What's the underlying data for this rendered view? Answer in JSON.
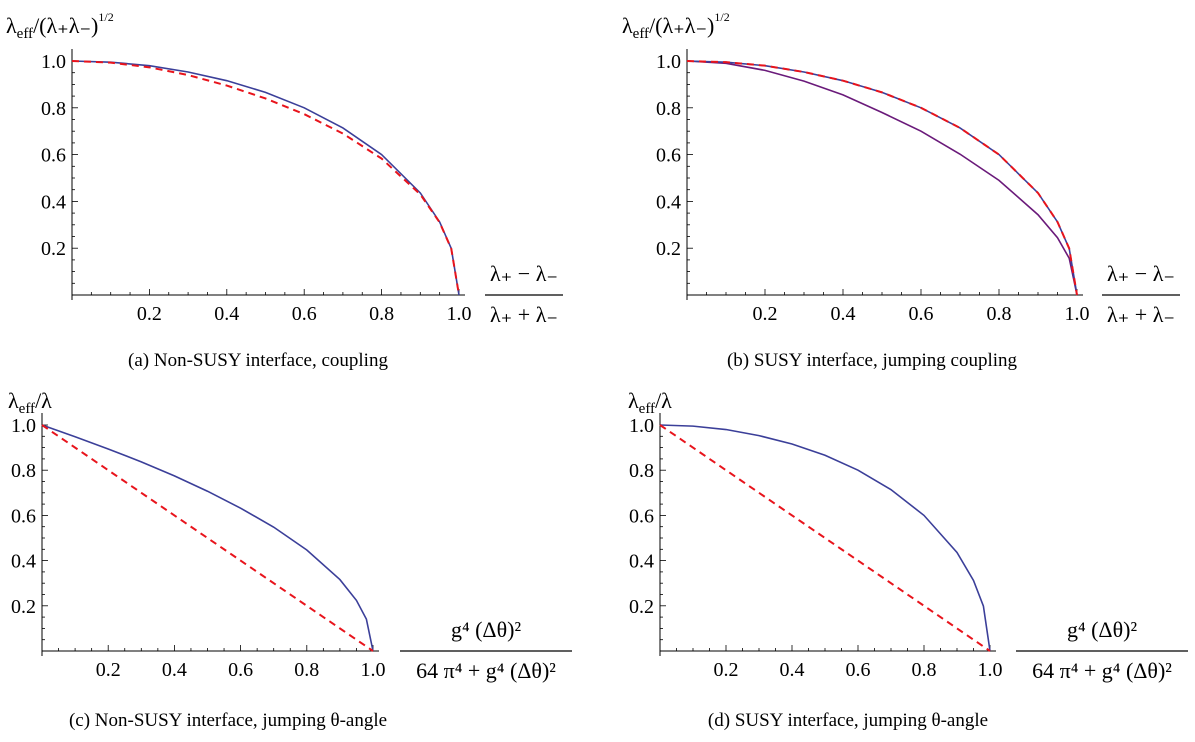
{
  "colors": {
    "blue": "#3b3f99",
    "red": "#e8141c",
    "purple": "#6a1a7a",
    "axis": "#000000"
  },
  "chart_data": [
    {
      "type": "line",
      "caption": "(a) Non-SUSY interface, coupling",
      "ylabel": "λeff/(λ+λ−)^1/2",
      "ylabel_main": "λ",
      "ylabel_sub": "eff",
      "ylabel_rest": "/(λ₊λ₋)",
      "ylabel_sup": "1/2",
      "xlabel_num": "λ₊ − λ₋",
      "xlabel_den": "λ₊ + λ₋",
      "xlim": [
        0,
        1.0
      ],
      "ylim": [
        0,
        1.0
      ],
      "xticks": [
        "0.2",
        "0.4",
        "0.6",
        "0.8",
        "1.0"
      ],
      "yticks": [
        "0.2",
        "0.4",
        "0.6",
        "0.8",
        "1.0"
      ],
      "series": [
        {
          "style": "solid",
          "color": "#3b3f99",
          "x": [
            0,
            0.1,
            0.2,
            0.3,
            0.4,
            0.5,
            0.6,
            0.7,
            0.8,
            0.9,
            0.95,
            0.98,
            1.0
          ],
          "y": [
            1.0,
            0.995,
            0.98,
            0.953,
            0.916,
            0.866,
            0.8,
            0.714,
            0.6,
            0.436,
            0.312,
            0.199,
            0
          ]
        },
        {
          "style": "dashed",
          "color": "#e8141c",
          "x": [
            0,
            0.1,
            0.2,
            0.3,
            0.4,
            0.5,
            0.6,
            0.7,
            0.8,
            0.9,
            0.95,
            0.98,
            1.0
          ],
          "y": [
            1.0,
            0.993,
            0.973,
            0.94,
            0.895,
            0.84,
            0.773,
            0.69,
            0.583,
            0.43,
            0.31,
            0.198,
            0
          ]
        }
      ]
    },
    {
      "type": "line",
      "caption": "(b) SUSY interface, jumping coupling",
      "ylabel": "λeff/(λ+λ−)^1/2",
      "ylabel_main": "λ",
      "ylabel_sub": "eff",
      "ylabel_rest": "/(λ₊λ₋)",
      "ylabel_sup": "1/2",
      "xlabel_num": "λ₊ − λ₋",
      "xlabel_den": "λ₊ + λ₋",
      "xlim": [
        0,
        1.0
      ],
      "ylim": [
        0,
        1.0
      ],
      "xticks": [
        "0.2",
        "0.4",
        "0.6",
        "0.8",
        "1.0"
      ],
      "yticks": [
        "0.2",
        "0.4",
        "0.6",
        "0.8",
        "1.0"
      ],
      "series": [
        {
          "style": "solid",
          "color": "#6a1a7a",
          "x": [
            0,
            0.1,
            0.2,
            0.3,
            0.4,
            0.5,
            0.6,
            0.7,
            0.8,
            0.9,
            0.95,
            0.98,
            1.0
          ],
          "y": [
            1.0,
            0.99,
            0.96,
            0.914,
            0.855,
            0.78,
            0.7,
            0.602,
            0.49,
            0.343,
            0.245,
            0.157,
            0
          ]
        },
        {
          "style": "solid",
          "color": "#3b3f99",
          "x": [
            0,
            0.1,
            0.2,
            0.3,
            0.4,
            0.5,
            0.6,
            0.7,
            0.8,
            0.9,
            0.95,
            0.98,
            1.0
          ],
          "y": [
            1.0,
            0.995,
            0.98,
            0.953,
            0.916,
            0.866,
            0.8,
            0.714,
            0.6,
            0.436,
            0.312,
            0.199,
            0
          ]
        },
        {
          "style": "dashed",
          "color": "#e8141c",
          "x": [
            0,
            0.1,
            0.2,
            0.3,
            0.4,
            0.5,
            0.6,
            0.7,
            0.8,
            0.9,
            0.95,
            0.98,
            1.0
          ],
          "y": [
            1.0,
            0.995,
            0.98,
            0.953,
            0.916,
            0.866,
            0.8,
            0.714,
            0.6,
            0.436,
            0.312,
            0.199,
            0
          ]
        }
      ]
    },
    {
      "type": "line",
      "caption": "(c) Non-SUSY interface, jumping θ-angle",
      "ylabel": "λeff/λ",
      "ylabel_main": "λ",
      "ylabel_sub": "eff",
      "ylabel_rest": "/λ",
      "ylabel_sup": "",
      "xlabel_num": "g⁴ (Δθ)²",
      "xlabel_den": "64 π⁴ + g⁴ (Δθ)²",
      "xlim": [
        0,
        1.0
      ],
      "ylim": [
        0,
        1.0
      ],
      "xticks": [
        "0.2",
        "0.4",
        "0.6",
        "0.8",
        "1.0"
      ],
      "yticks": [
        "0.2",
        "0.4",
        "0.6",
        "0.8",
        "1.0"
      ],
      "series": [
        {
          "style": "solid",
          "color": "#3b3f99",
          "x": [
            0,
            0.1,
            0.2,
            0.3,
            0.4,
            0.5,
            0.6,
            0.7,
            0.8,
            0.9,
            0.95,
            0.98,
            1.0
          ],
          "y": [
            1.0,
            0.948,
            0.894,
            0.837,
            0.775,
            0.707,
            0.632,
            0.548,
            0.447,
            0.316,
            0.224,
            0.141,
            0
          ]
        },
        {
          "style": "dashed",
          "color": "#e8141c",
          "x": [
            0,
            1.0
          ],
          "y": [
            1.0,
            0
          ]
        }
      ]
    },
    {
      "type": "line",
      "caption": "(d) SUSY interface, jumping θ-angle",
      "ylabel": "λeff/λ",
      "ylabel_main": "λ",
      "ylabel_sub": "eff",
      "ylabel_rest": "/λ",
      "ylabel_sup": "",
      "xlabel_num": "g⁴ (Δθ)²",
      "xlabel_den": "64 π⁴ + g⁴ (Δθ)²",
      "xlim": [
        0,
        1.0
      ],
      "ylim": [
        0,
        1.0
      ],
      "xticks": [
        "0.2",
        "0.4",
        "0.6",
        "0.8",
        "1.0"
      ],
      "yticks": [
        "0.2",
        "0.4",
        "0.6",
        "0.8",
        "1.0"
      ],
      "series": [
        {
          "style": "solid",
          "color": "#3b3f99",
          "x": [
            0,
            0.1,
            0.2,
            0.3,
            0.4,
            0.5,
            0.6,
            0.7,
            0.8,
            0.9,
            0.95,
            0.98,
            1.0
          ],
          "y": [
            1.0,
            0.995,
            0.98,
            0.953,
            0.916,
            0.866,
            0.8,
            0.714,
            0.6,
            0.436,
            0.312,
            0.199,
            0
          ]
        },
        {
          "style": "dashed",
          "color": "#e8141c",
          "x": [
            0,
            1.0
          ],
          "y": [
            1.0,
            0
          ]
        }
      ]
    }
  ]
}
